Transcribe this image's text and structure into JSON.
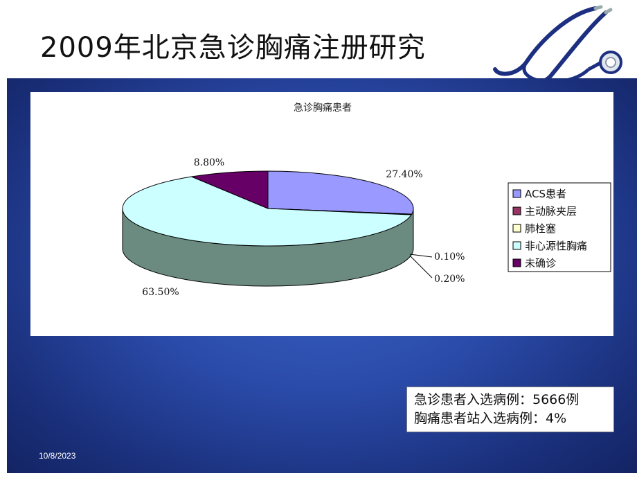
{
  "slide": {
    "title": "2009年北京急诊胸痛注册研究",
    "date": "10/8/2023",
    "notes": [
      "急诊患者入选病例：5666例",
      "胸痛患者站入选病例：4%"
    ]
  },
  "colors": {
    "panel": "#2a4aa8",
    "acs": "#9999ff",
    "dissection": "#993366",
    "pe": "#ffffcc",
    "noncardiac": "#ccffff",
    "undiagnosed": "#660066",
    "side_wall": "#6b8a80"
  },
  "chart_data": {
    "type": "pie",
    "title": "急诊胸痛患者",
    "categories": [
      "ACS患者",
      "主动脉夹层",
      "肺栓塞",
      "非心源性胸痛",
      "未确诊"
    ],
    "values": [
      27.4,
      0.1,
      0.2,
      63.5,
      8.8
    ],
    "value_labels": [
      "27.40%",
      "0.10%",
      "0.20%",
      "63.50%",
      "8.80%"
    ],
    "legend_position": "right",
    "three_d": true
  }
}
